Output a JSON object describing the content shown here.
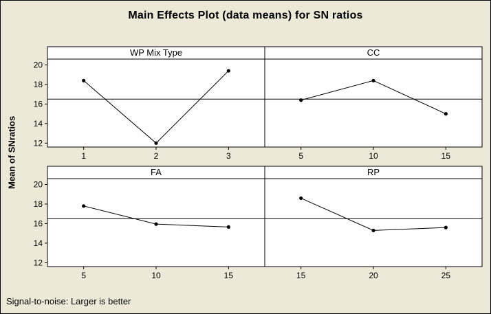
{
  "chart_data": {
    "type": "line",
    "title": "Main Effects Plot (data means) for SN ratios",
    "ylabel": "Mean of SNratios",
    "footnote": "Signal-to-noise: Larger is better",
    "ylim": [
      11.6,
      20.6
    ],
    "yticks": [
      12,
      14,
      16,
      18,
      20
    ],
    "reference_line": 16.5,
    "grid": false,
    "panels": [
      {
        "label": "WP Mix Type",
        "x": [
          "1",
          "2",
          "3"
        ],
        "y": [
          18.4,
          12.0,
          19.4
        ]
      },
      {
        "label": "CC",
        "x": [
          "5",
          "10",
          "15"
        ],
        "y": [
          16.4,
          18.4,
          15.0
        ]
      },
      {
        "label": "FA",
        "x": [
          "5",
          "10",
          "15"
        ],
        "y": [
          17.8,
          15.95,
          15.65
        ]
      },
      {
        "label": "RP",
        "x": [
          "15",
          "20",
          "25"
        ],
        "y": [
          18.6,
          15.3,
          15.6
        ]
      }
    ]
  }
}
